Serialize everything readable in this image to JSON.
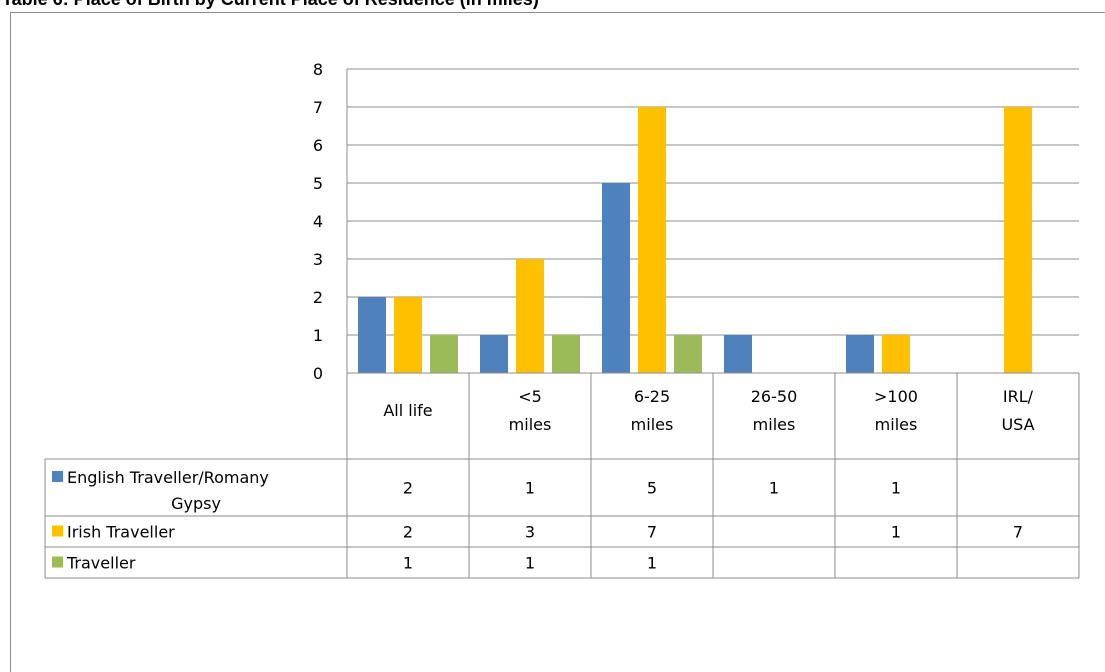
{
  "title": "Table 6: Place of Birth by Current Place of Residence (in miles)",
  "chart_data": {
    "type": "bar",
    "categories": [
      [
        "All life"
      ],
      [
        "<5",
        "miles"
      ],
      [
        "6-25",
        "miles"
      ],
      [
        "26-50",
        "miles"
      ],
      [
        ">100",
        "miles"
      ],
      [
        "IRL/",
        "USA"
      ]
    ],
    "series": [
      {
        "name": [
          "English Traveller/Romany",
          "Gypsy"
        ],
        "color": "#4F81BD",
        "values": [
          2,
          1,
          5,
          1,
          1,
          null
        ]
      },
      {
        "name": [
          "Irish Traveller"
        ],
        "color": "#FFC000",
        "values": [
          2,
          3,
          7,
          null,
          1,
          7
        ]
      },
      {
        "name": [
          "Traveller"
        ],
        "color": "#9BBB59",
        "values": [
          1,
          1,
          1,
          null,
          null,
          null
        ]
      }
    ],
    "ylim": [
      0,
      8
    ],
    "yticks": [
      0,
      1,
      2,
      3,
      4,
      5,
      6,
      7,
      8
    ],
    "grid": true,
    "legend": "data-table"
  }
}
